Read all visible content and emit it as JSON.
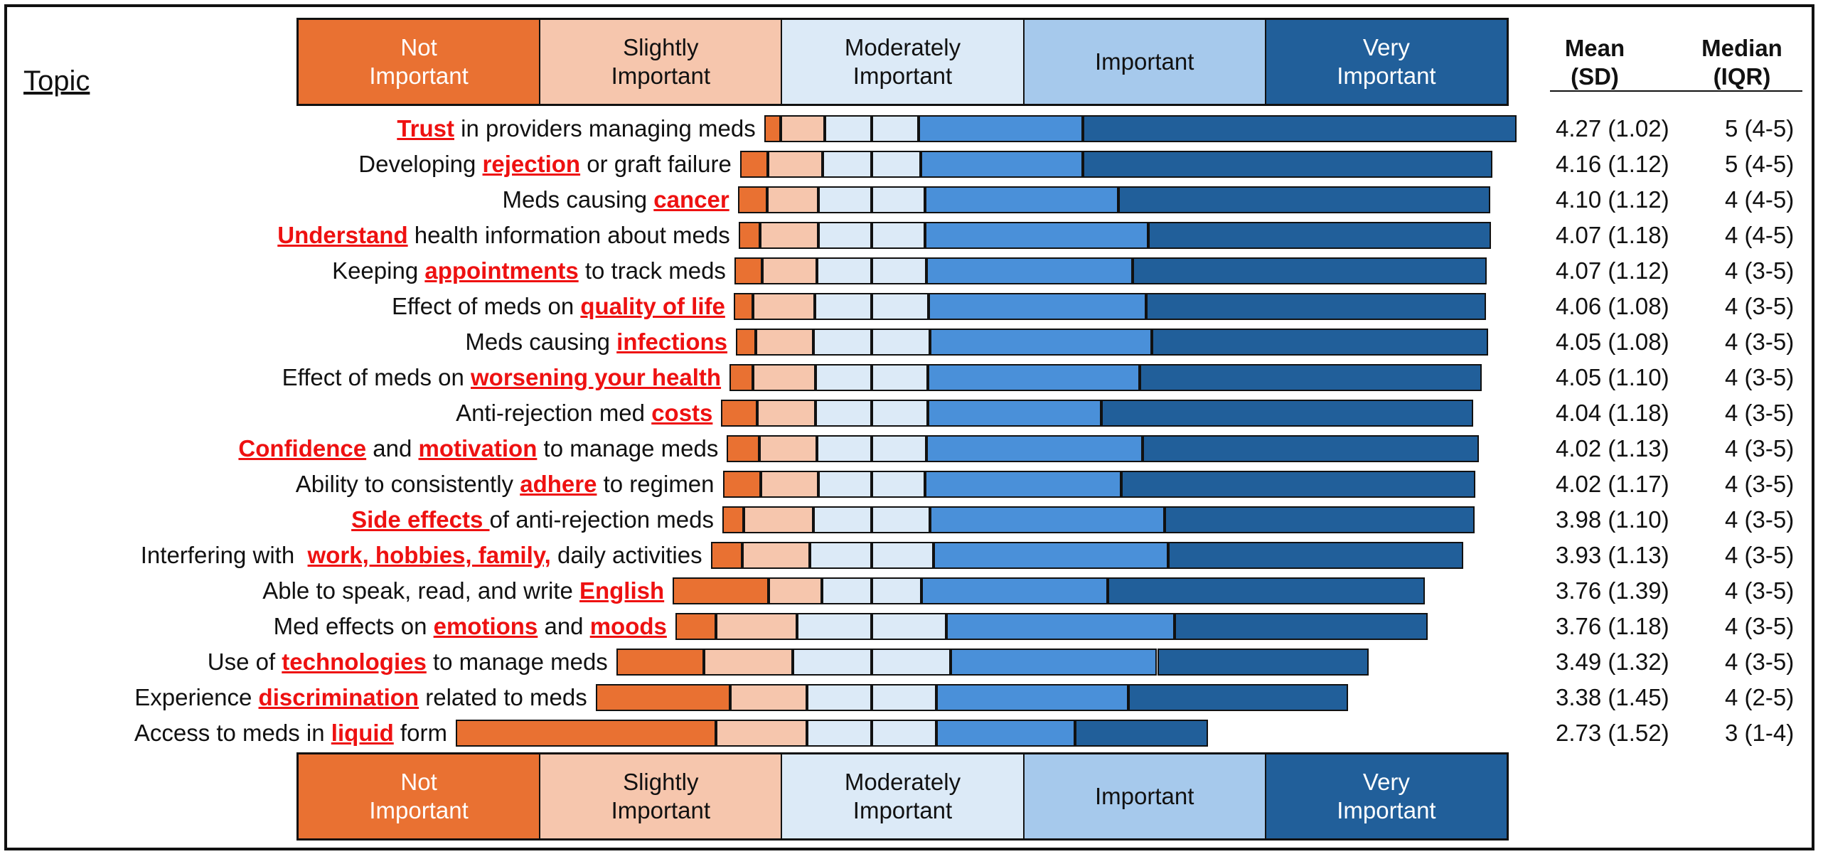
{
  "chart_data": {
    "type": "bar",
    "subtype": "diverging-stacked-horizontal",
    "title": "",
    "topic_header": "Topic",
    "legend_labels": [
      "Not\nImportant",
      "Slightly\nImportant",
      "Moderately\nImportant",
      "Important",
      "Very\nImportant"
    ],
    "legend_placement": "top and bottom",
    "colors": {
      "not": "#E97132",
      "slightly": "#F6C6AD",
      "moderately": "#DCEAF7",
      "important": "#4A90D9",
      "very": "#215F9A",
      "legend_important": "#A6C9EC",
      "highlight": "#EE1111"
    },
    "stats_headers": {
      "mean": "Mean\n(SD)",
      "median": "Median\n(IQR)"
    },
    "unit": "percent of respondents",
    "rows": [
      {
        "label": [
          {
            "t": "Trust",
            "hl": true
          },
          {
            "t": " in providers managing meds"
          }
        ],
        "values": [
          2.2,
          5.9,
          12.4,
          21.9,
          57.6
        ],
        "mean": "4.27 (1.02)",
        "median": "5 (4-5)"
      },
      {
        "label": [
          {
            "t": "Developing "
          },
          {
            "t": "rejection",
            "hl": true
          },
          {
            "t": " or graft failure"
          }
        ],
        "values": [
          3.7,
          7.3,
          13.0,
          21.6,
          54.4
        ],
        "mean": "4.16 (1.12)",
        "median": "5 (4-5)"
      },
      {
        "label": [
          {
            "t": "Meds causing "
          },
          {
            "t": "cancer",
            "hl": true
          }
        ],
        "values": [
          3.9,
          6.8,
          14.2,
          25.7,
          49.4
        ],
        "mean": "4.10 (1.12)",
        "median": "4 (4-5)"
      },
      {
        "label": [
          {
            "t": "Understand",
            "hl": true
          },
          {
            "t": " health information about meds"
          }
        ],
        "values": [
          2.9,
          7.7,
          14.2,
          29.7,
          45.5
        ],
        "mean": "4.07 (1.18)",
        "median": "4 (4-5)"
      },
      {
        "label": [
          {
            "t": "Keeping "
          },
          {
            "t": "appointments",
            "hl": true
          },
          {
            "t": " to track meds"
          }
        ],
        "values": [
          3.7,
          7.3,
          14.5,
          27.4,
          47.1
        ],
        "mean": "4.07 (1.12)",
        "median": "4 (3-5)"
      },
      {
        "label": [
          {
            "t": "Effect of meds on "
          },
          {
            "t": "quality of life",
            "hl": true
          }
        ],
        "values": [
          2.6,
          8.2,
          15.1,
          28.9,
          45.2
        ],
        "mean": "4.06 (1.08)",
        "median": "4 (3-5)"
      },
      {
        "label": [
          {
            "t": "Meds causing "
          },
          {
            "t": "infections",
            "hl": true
          }
        ],
        "values": [
          2.6,
          7.7,
          15.5,
          29.5,
          44.7
        ],
        "mean": "4.05 (1.08)",
        "median": "4 (3-5)"
      },
      {
        "label": [
          {
            "t": "Effect of meds on "
          },
          {
            "t": "worsening your health",
            "hl": true
          }
        ],
        "values": [
          3.1,
          8.3,
          15.0,
          28.1,
          45.5
        ],
        "mean": "4.05 (1.10)",
        "median": "4 (3-5)"
      },
      {
        "label": [
          {
            "t": "Anti-rejection med "
          },
          {
            "t": "costs",
            "hl": true
          }
        ],
        "values": [
          4.8,
          7.7,
          15.0,
          23.0,
          49.5
        ],
        "mean": "4.04 (1.18)",
        "median": "4 (3-5)"
      },
      {
        "label": [
          {
            "t": "Confidence",
            "hl": true
          },
          {
            "t": " and "
          },
          {
            "t": "motivation",
            "hl": true
          },
          {
            "t": " to manage meds"
          }
        ],
        "values": [
          4.3,
          7.7,
          14.5,
          28.8,
          44.7
        ],
        "mean": "4.02 (1.13)",
        "median": "4 (3-5)"
      },
      {
        "label": [
          {
            "t": "Ability to consistently "
          },
          {
            "t": "adhere",
            "hl": true
          },
          {
            "t": " to regimen"
          }
        ],
        "values": [
          5.1,
          7.6,
          14.2,
          26.1,
          47.0
        ],
        "mean": "4.02 (1.17)",
        "median": "4 (3-5)"
      },
      {
        "label": [
          {
            "t": "Side effects ",
            "hl": true
          },
          {
            "t": "of anti-rejection meds"
          }
        ],
        "values": [
          2.8,
          9.3,
          15.5,
          31.2,
          41.2
        ],
        "mean": "3.98 (1.10)",
        "median": "4 (3-5)"
      },
      {
        "label": [
          {
            "t": "Interfering with  "
          },
          {
            "t": "work, hobbies, family,",
            "hl": true
          },
          {
            "t": " daily activities"
          }
        ],
        "values": [
          4.2,
          9.0,
          16.4,
          31.2,
          39.2
        ],
        "mean": "3.93 (1.13)",
        "median": "4 (3-5)"
      },
      {
        "label": [
          {
            "t": "Able to speak, read, and write "
          },
          {
            "t": "English",
            "hl": true
          }
        ],
        "values": [
          12.7,
          7.1,
          13.3,
          24.7,
          42.2
        ],
        "mean": "3.76 (1.39)",
        "median": "4 (3-5)"
      },
      {
        "label": [
          {
            "t": "Med effects on "
          },
          {
            "t": "emotions",
            "hl": true
          },
          {
            "t": " and "
          },
          {
            "t": "moods",
            "hl": true
          }
        ],
        "values": [
          5.4,
          10.8,
          19.8,
          30.4,
          33.6
        ],
        "mean": "3.76 (1.18)",
        "median": "4 (3-5)"
      },
      {
        "label": [
          {
            "t": "Use of "
          },
          {
            "t": "technologies",
            "hl": true
          },
          {
            "t": " to manage meds"
          }
        ],
        "values": [
          11.6,
          11.9,
          20.9,
          27.5,
          28.1
        ],
        "mean": "3.49 (1.32)",
        "median": "4 (3-5)"
      },
      {
        "label": [
          {
            "t": "Experience "
          },
          {
            "t": "discrimination",
            "hl": true
          },
          {
            "t": " related to meds"
          }
        ],
        "values": [
          17.9,
          10.2,
          17.2,
          25.5,
          29.2
        ],
        "mean": "3.38 (1.45)",
        "median": "4 (2-5)"
      },
      {
        "label": [
          {
            "t": "Access to meds in "
          },
          {
            "t": "liquid",
            "hl": true
          },
          {
            "t": " form"
          }
        ],
        "values": [
          34.6,
          12.1,
          17.2,
          18.4,
          17.7
        ],
        "mean": "2.73 (1.52)",
        "median": "3 (1-4)"
      }
    ]
  }
}
